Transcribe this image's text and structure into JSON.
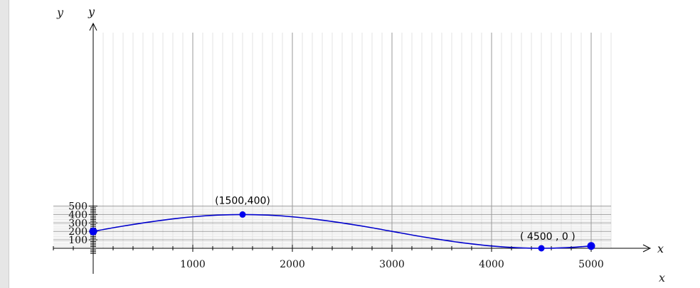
{
  "outer_labels": {
    "y": "y",
    "x": "x"
  },
  "chart_data": {
    "type": "line",
    "xlabel": "x",
    "ylabel": "y",
    "xlim": [
      -400,
      5200
    ],
    "ylim": [
      0,
      500
    ],
    "x_ticks": [
      1000,
      2000,
      3000,
      4000,
      5000
    ],
    "y_ticks": [
      100,
      200,
      300,
      400,
      500
    ],
    "grid": true,
    "line_color": "#0000cc",
    "point_color": "#0000ee",
    "series": [
      {
        "x": [
          0,
          250,
          500,
          750,
          1000,
          1250,
          1500,
          1750,
          2000,
          2250,
          2500,
          2750,
          3000,
          3250,
          3500,
          3750,
          4000,
          4250,
          4500,
          4750,
          5000
        ],
        "y": [
          200,
          253,
          300,
          341,
          373,
          393,
          400,
          393,
          373,
          341,
          300,
          253,
          200,
          147,
          100,
          59,
          27,
          7,
          0,
          7,
          27
        ]
      }
    ],
    "points": [
      {
        "x": 0,
        "y": 200
      },
      {
        "x": 1500,
        "y": 400
      },
      {
        "x": 4500,
        "y": 0
      },
      {
        "x": 5000,
        "y": 27
      }
    ],
    "annotations": [
      {
        "text": "(1500,400)",
        "x": 1500,
        "y": 400
      },
      {
        "text": "( 4500 , 0 )",
        "x": 4500,
        "y": 0
      }
    ]
  }
}
